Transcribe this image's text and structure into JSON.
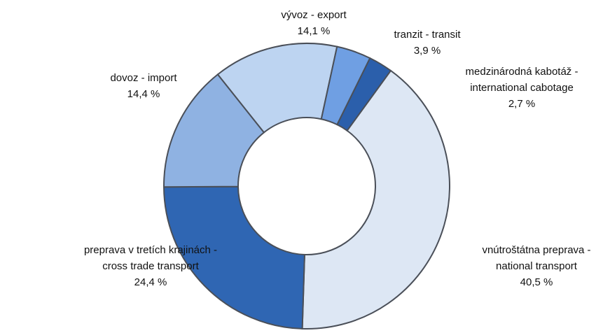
{
  "chart_data": {
    "type": "donut",
    "categories": [
      [
        "vnútroštátna preprava -",
        "national transport"
      ],
      [
        "preprava v tretích krajinách -",
        "cross trade transport"
      ],
      [
        "dovoz - import"
      ],
      [
        "vývoz - export"
      ],
      [
        "tranzit - transit"
      ],
      [
        "medzinárodná kabotáž -",
        "international cabotage"
      ]
    ],
    "values": [
      40.5,
      24.4,
      14.4,
      14.1,
      3.9,
      2.7
    ],
    "value_labels": [
      "40,5 %",
      "24,4 %",
      "14,4 %",
      "14,1 %",
      "3,9 %",
      "2,7 %"
    ],
    "colors": [
      "#dde7f4",
      "#2f66b3",
      "#8fb2e2",
      "#bdd4f1",
      "#6f9fe3",
      "#2b5fab"
    ]
  }
}
